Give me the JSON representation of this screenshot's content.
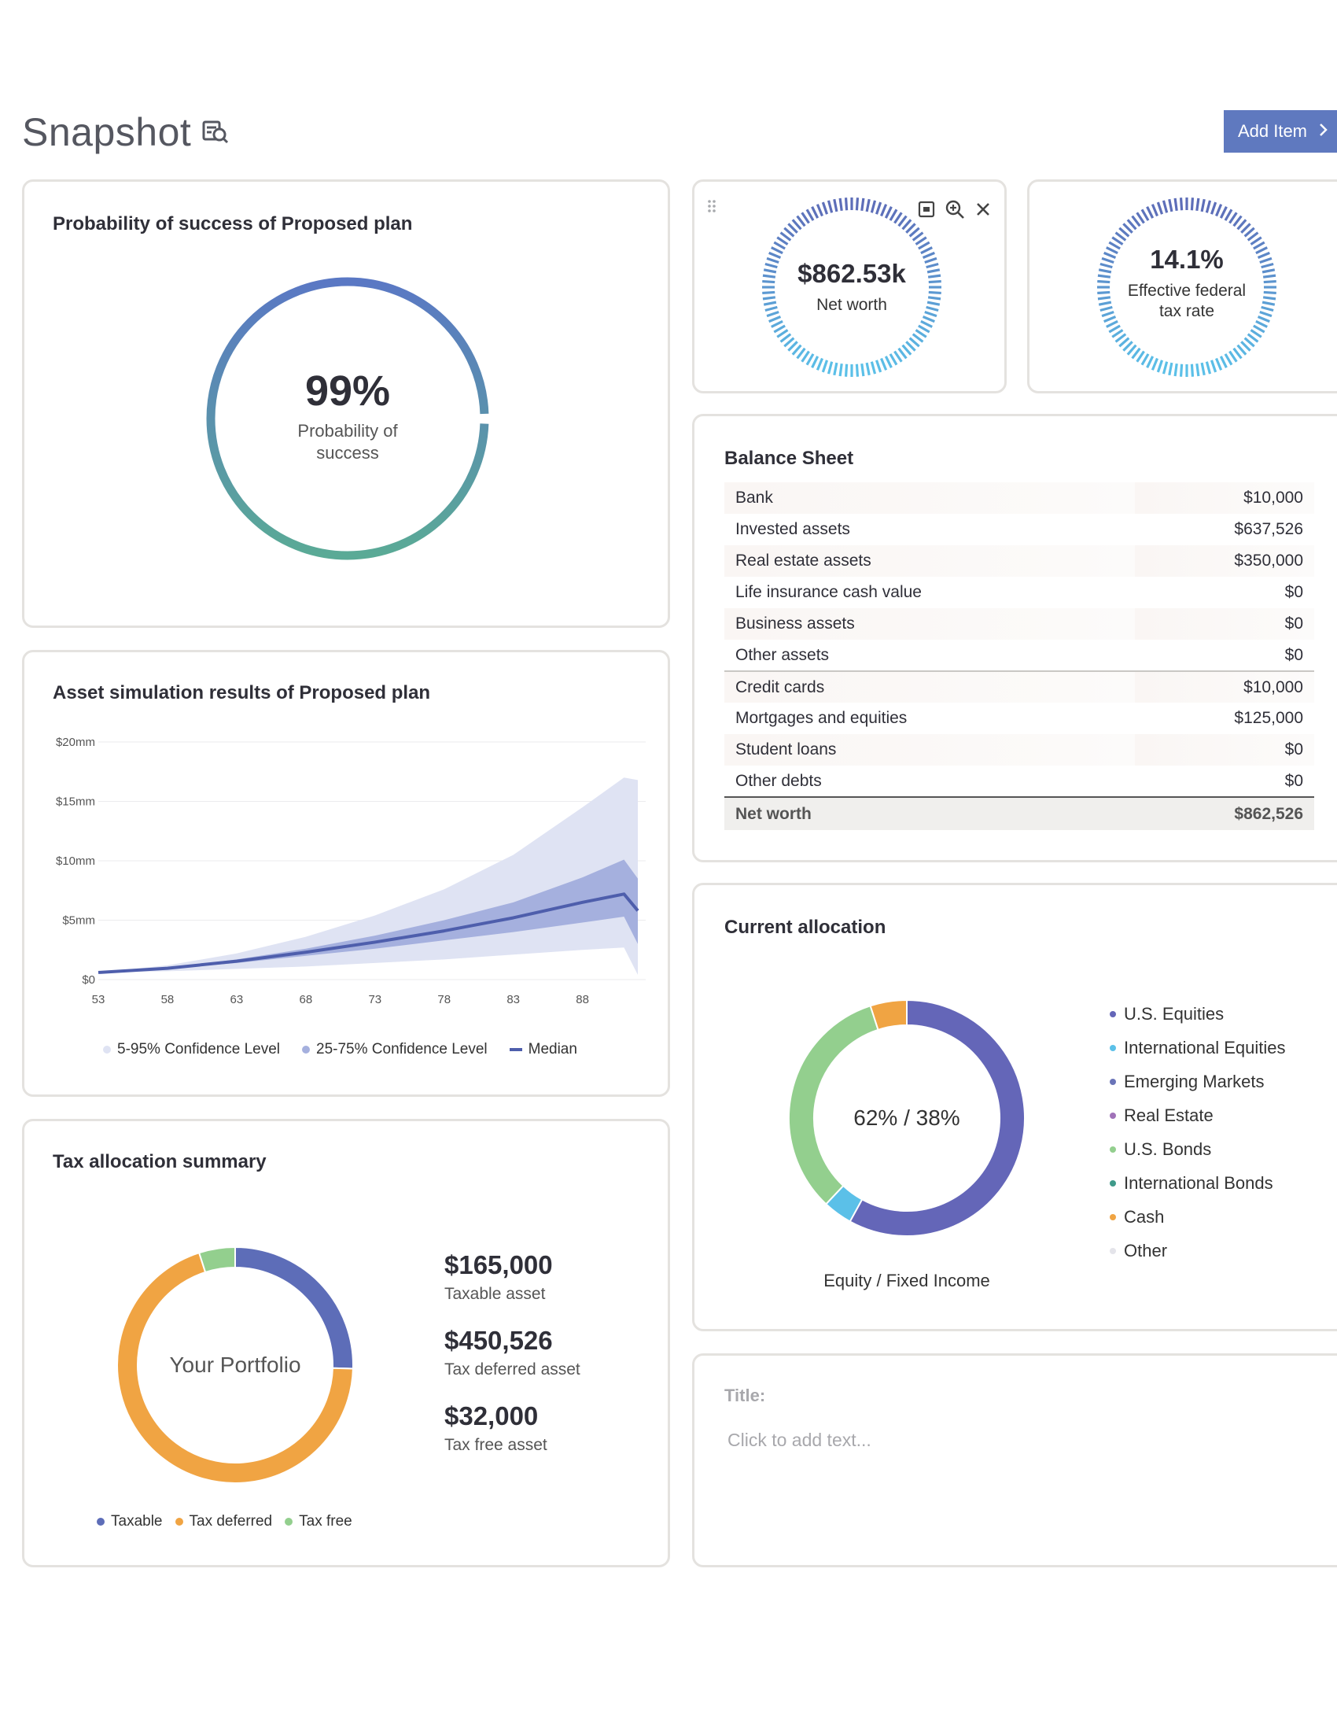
{
  "page": {
    "title": "Snapshot",
    "add_item_label": "Add Item",
    "title_icon": "print-preview-icon"
  },
  "probability_card": {
    "title": "Probability of success of Proposed plan",
    "value": "99%",
    "label": "Probability of success",
    "probability_fraction": 0.99,
    "gradient_colors": [
      "#5a78c4",
      "#5aaa96"
    ]
  },
  "simulation_card": {
    "title": "Asset simulation results of Proposed plan",
    "legend": [
      "5-95% Confidence Level",
      "25-75% Confidence Level",
      "Median"
    ],
    "colors": {
      "band_outer": "#dfe3f3",
      "band_inner": "#a5b0de",
      "median": "#4e5eac"
    }
  },
  "tax_card": {
    "title": "Tax allocation summary",
    "center_label": "Your Portfolio",
    "amounts": [
      {
        "value": "$165,000",
        "label": "Taxable asset"
      },
      {
        "value": "$450,526",
        "label": "Tax deferred asset"
      },
      {
        "value": "$32,000",
        "label": "Tax free asset"
      }
    ],
    "legend": [
      {
        "label": "Taxable",
        "color": "#5d6db8"
      },
      {
        "label": "Tax deferred",
        "color": "#f0a443"
      },
      {
        "label": "Tax free",
        "color": "#93cf8e"
      }
    ]
  },
  "networth_card": {
    "value": "$862.53k",
    "label": "Net worth",
    "icons": [
      "drag-handle-icon",
      "print-icon",
      "zoom-in-icon",
      "close-icon"
    ]
  },
  "taxrate_card": {
    "value": "14.1%",
    "label": "Effective federal tax rate"
  },
  "gauge_colors": {
    "top": "#5d6db8",
    "bottom": "#5bc0e8"
  },
  "balance_sheet": {
    "title": "Balance Sheet",
    "assets": [
      {
        "label": "Bank",
        "amount": "$10,000"
      },
      {
        "label": "Invested assets",
        "amount": "$637,526"
      },
      {
        "label": "Real estate assets",
        "amount": "$350,000"
      },
      {
        "label": "Life insurance cash value",
        "amount": "$0"
      },
      {
        "label": "Business assets",
        "amount": "$0"
      },
      {
        "label": "Other assets",
        "amount": "$0"
      }
    ],
    "liabilities": [
      {
        "label": "Credit cards",
        "amount": "$10,000"
      },
      {
        "label": "Mortgages and equities",
        "amount": "$125,000"
      },
      {
        "label": "Student loans",
        "amount": "$0"
      },
      {
        "label": "Other debts",
        "amount": "$0"
      }
    ],
    "total": {
      "label": "Net worth",
      "amount": "$862,526"
    }
  },
  "allocation_card": {
    "title": "Current allocation",
    "center_text": "62% / 38%",
    "caption": "Equity / Fixed Income",
    "legend": [
      {
        "label": "U.S. Equities",
        "color": "#6466b8"
      },
      {
        "label": "International Equities",
        "color": "#5bc0e8"
      },
      {
        "label": "Emerging Markets",
        "color": "#6a74b8"
      },
      {
        "label": "Real Estate",
        "color": "#a072b8"
      },
      {
        "label": "U.S. Bonds",
        "color": "#93cf8e"
      },
      {
        "label": "International Bonds",
        "color": "#3f9a8a"
      },
      {
        "label": "Cash",
        "color": "#f0a443"
      },
      {
        "label": "Other",
        "color": "#e4e4ea"
      }
    ]
  },
  "text_card": {
    "title_label": "Title:",
    "placeholder": "Click to add text..."
  },
  "chart_data": [
    {
      "type": "area",
      "title": "Asset simulation results of Proposed plan",
      "xlabel": "",
      "ylabel": "",
      "x_ticks": [
        "53",
        "58",
        "63",
        "68",
        "73",
        "78",
        "83",
        "88"
      ],
      "y_ticks": [
        "$0",
        "$5mm",
        "$10mm",
        "$15mm",
        "$20mm"
      ],
      "ylim": [
        0,
        20
      ],
      "y_unit": "mm",
      "x": [
        53,
        58,
        63,
        68,
        73,
        78,
        83,
        88,
        91,
        92
      ],
      "series": [
        {
          "name": "5-95% Confidence Level",
          "low": [
            0.6,
            0.7,
            0.9,
            1.1,
            1.4,
            1.7,
            2.1,
            2.5,
            2.7,
            0.4
          ],
          "high": [
            0.6,
            1.2,
            2.2,
            3.6,
            5.4,
            7.6,
            10.5,
            14.5,
            17.0,
            16.8
          ]
        },
        {
          "name": "25-75% Confidence Level",
          "low": [
            0.6,
            0.9,
            1.4,
            2.0,
            2.6,
            3.3,
            4.0,
            4.8,
            5.3,
            3.0
          ],
          "high": [
            0.6,
            1.0,
            1.7,
            2.6,
            3.7,
            5.0,
            6.5,
            8.6,
            10.1,
            8.5
          ]
        },
        {
          "name": "Median",
          "values": [
            0.6,
            0.95,
            1.55,
            2.3,
            3.15,
            4.1,
            5.2,
            6.5,
            7.2,
            5.8
          ]
        }
      ]
    },
    {
      "type": "pie",
      "title": "Tax allocation summary",
      "categories": [
        "Taxable",
        "Tax deferred",
        "Tax free"
      ],
      "values": [
        165000,
        450526,
        32000
      ]
    },
    {
      "type": "pie",
      "title": "Current allocation",
      "categories": [
        "U.S. Equities",
        "International Equities",
        "U.S. Bonds",
        "Cash"
      ],
      "values": [
        58,
        4,
        33,
        5
      ]
    }
  ]
}
